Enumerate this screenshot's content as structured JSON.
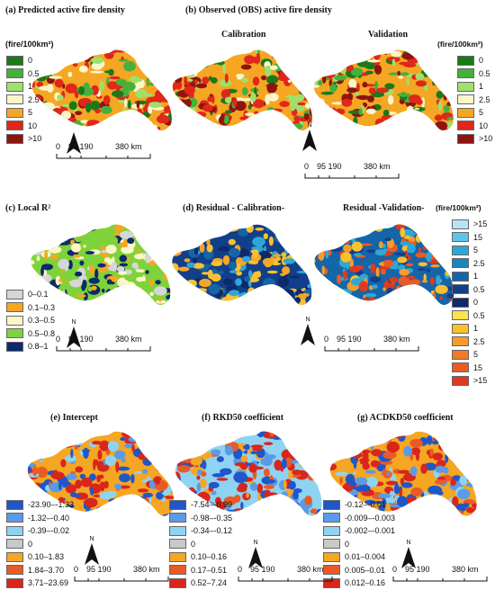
{
  "titles": {
    "a": "(a)   Predicted active fire density",
    "b": "(b)     Observed (OBS) active fire density",
    "b_cal": "Calibration",
    "b_val": "Validation",
    "c": "(c)        Local R²",
    "d": "(d)     Residual - Calibration-",
    "d_val": "Residual -Validation-",
    "e": "(e)            Intercept",
    "f": "(f)         RKD50 coefficient",
    "g": "(g)      ACDKD50 coefficient"
  },
  "units": {
    "left": "(fire/100km²)",
    "right": "(fire/100km²)",
    "resid": "(fire/100km²)"
  },
  "north": "N",
  "scale": [
    "0",
    "95 190",
    "380 km"
  ],
  "legends": {
    "fire": [
      {
        "label": "0",
        "color": "#1a7a1a"
      },
      {
        "label": "0.5",
        "color": "#46b03c"
      },
      {
        "label": "1",
        "color": "#9ee06a"
      },
      {
        "label": "2.5",
        "color": "#fbf5c8"
      },
      {
        "label": "5",
        "color": "#f5a623"
      },
      {
        "label": "10",
        "color": "#e0271b"
      },
      {
        "label": ">10",
        "color": "#8e1410"
      }
    ],
    "r2": [
      {
        "label": "0–0.1",
        "color": "#d6d6d6"
      },
      {
        "label": "0.1–0.3",
        "color": "#f5a623"
      },
      {
        "label": "0.3–0.5",
        "color": "#fbf5c8"
      },
      {
        "label": "0.5–0.8",
        "color": "#7ed33a"
      },
      {
        "label": "0.8–1",
        "color": "#0c2a6b"
      }
    ],
    "resid": [
      {
        "label": ">15",
        "color": "#b8e3f5"
      },
      {
        "label": "15",
        "color": "#5cc6ea"
      },
      {
        "label": "5",
        "color": "#2ea7d6"
      },
      {
        "label": "2.5",
        "color": "#1b86b8"
      },
      {
        "label": "1",
        "color": "#1565a8"
      },
      {
        "label": "0.5",
        "color": "#123f8a"
      },
      {
        "label": "0",
        "color": "#0d2a6d"
      },
      {
        "label": "0.5",
        "color": "#ffe34d"
      },
      {
        "label": "1",
        "color": "#f9c02f"
      },
      {
        "label": "2.5",
        "color": "#f59c2a"
      },
      {
        "label": "5",
        "color": "#ef7a27"
      },
      {
        "label": "15",
        "color": "#ea5a25"
      },
      {
        "label": ">15",
        "color": "#e03a1e"
      }
    ],
    "intercept": [
      {
        "label": "-23.90–-1.33",
        "color": "#1f57c9"
      },
      {
        "label": "-1.32–-0.40",
        "color": "#5a9ae6"
      },
      {
        "label": "-0.39–-0.02",
        "color": "#8fd3f2"
      },
      {
        "label": "0",
        "color": "#c9c9c9"
      },
      {
        "label": "0.10–1.83",
        "color": "#f5a623"
      },
      {
        "label": "1.84–3.70",
        "color": "#ea5a25"
      },
      {
        "label": "3.71–23.69",
        "color": "#d9261c"
      }
    ],
    "rkd": [
      {
        "label": "-7.54–-0.99",
        "color": "#1f57c9"
      },
      {
        "label": "-0.98–-0.35",
        "color": "#5a9ae6"
      },
      {
        "label": "-0.34–-0.12",
        "color": "#8fd3f2"
      },
      {
        "label": "0",
        "color": "#c9c9c9"
      },
      {
        "label": "0.10–0.16",
        "color": "#f5a623"
      },
      {
        "label": "0.17–0.51",
        "color": "#ea5a25"
      },
      {
        "label": "0.52–7.24",
        "color": "#d9261c"
      }
    ],
    "acd": [
      {
        "label": "-0.12–-0.01",
        "color": "#1f57c9"
      },
      {
        "label": "-0.009–-0.003",
        "color": "#5a9ae6"
      },
      {
        "label": "-0.002–-0.001",
        "color": "#8fd3f2"
      },
      {
        "label": "0",
        "color": "#c9c9c9"
      },
      {
        "label": "0.01–0.004",
        "color": "#f5a623"
      },
      {
        "label": "0.005–0.01",
        "color": "#ea5a25"
      },
      {
        "label": "0.012–0.16",
        "color": "#d9261c"
      }
    ]
  },
  "maps": {
    "a": {
      "base": "#f5a623",
      "spots": [
        "#e0271b",
        "#8e1410",
        "#46b03c",
        "#1a7a1a",
        "#fbf5c8",
        "#9ee06a",
        "#e0271b"
      ]
    },
    "b_cal": {
      "base": "#f5a623",
      "spots": [
        "#e0271b",
        "#fbf5c8",
        "#46b03c",
        "#1a7a1a",
        "#9ee06a",
        "#e0271b",
        "#8e1410"
      ]
    },
    "b_val": {
      "base": "#f5a623",
      "spots": [
        "#e0271b",
        "#8e1410",
        "#fbf5c8",
        "#46b03c",
        "#1a7a1a",
        "#9ee06a",
        "#e0271b"
      ]
    },
    "c": {
      "base": "#7ed33a",
      "spots": [
        "#fbf5c8",
        "#0c2a6b",
        "#7ed33a",
        "#f5a623",
        "#d6d6d6",
        "#fbf5c8",
        "#0c2a6b"
      ]
    },
    "d_cal": {
      "base": "#123f8a",
      "spots": [
        "#f9c02f",
        "#f5a623",
        "#1565a8",
        "#f9c02f",
        "#0d2a6d",
        "#2ea7d6"
      ]
    },
    "d_val": {
      "base": "#1565a8",
      "spots": [
        "#ea5a25",
        "#f59c2a",
        "#e03a1e",
        "#2ea7d6",
        "#f9c02f",
        "#123f8a"
      ]
    },
    "e": {
      "base": "#f5a623",
      "spots": [
        "#d9261c",
        "#1f57c9",
        "#5a9ae6",
        "#8fd3f2",
        "#ea5a25",
        "#d9261c",
        "#1f57c9"
      ]
    },
    "f": {
      "base": "#8fd3f2",
      "spots": [
        "#d9261c",
        "#1f57c9",
        "#ea5a25",
        "#5a9ae6",
        "#f5a623",
        "#d9261c",
        "#1f57c9"
      ]
    },
    "g": {
      "base": "#f5a623",
      "spots": [
        "#5a9ae6",
        "#d9261c",
        "#1f57c9",
        "#8fd3f2",
        "#ea5a25",
        "#1f57c9",
        "#d9261c"
      ]
    }
  }
}
